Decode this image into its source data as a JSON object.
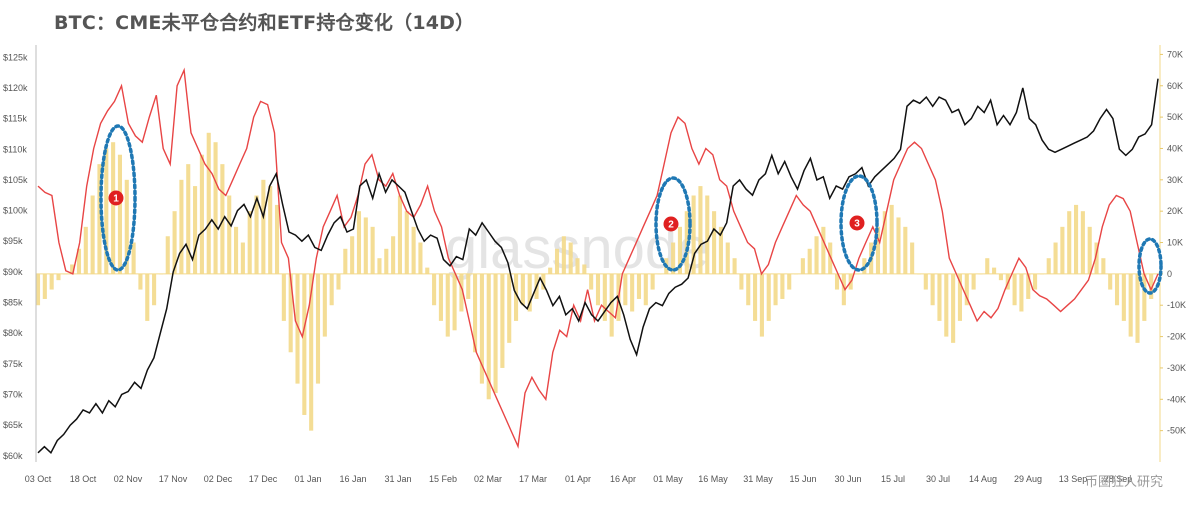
{
  "title": "BTC：CME未平仓合约和ETF持仓变化（14D）",
  "watermark": "glassnode",
  "corner_mark": "币圈狂人研究",
  "chart_data": {
    "type": "line",
    "title": "BTC：CME未平仓合约和ETF持仓变化（14D）",
    "x_ticks": [
      "03 Oct",
      "18 Oct",
      "02 Nov",
      "17 Nov",
      "02 Dec",
      "17 Dec",
      "01 Jan",
      "16 Jan",
      "31 Jan",
      "15 Feb",
      "02 Mar",
      "17 Mar",
      "01 Apr",
      "16 Apr",
      "01 May",
      "16 May",
      "31 May",
      "15 Jun",
      "30 Jun",
      "15 Jul",
      "30 Jul",
      "14 Aug",
      "29 Aug",
      "13 Sep",
      "28 Sep"
    ],
    "y_left": {
      "ticks": [
        "$60k",
        "$65k",
        "$70k",
        "$75k",
        "$80k",
        "$85k",
        "$90k",
        "$95k",
        "$100k",
        "$105k",
        "$110k",
        "$115k",
        "$120k",
        "$125k"
      ],
      "range": [
        59000,
        127000
      ]
    },
    "y_right": {
      "ticks": [
        "-50K",
        "-40K",
        "-30K",
        "-20K",
        "-10K",
        "0",
        "10K",
        "20K",
        "30K",
        "40K",
        "50K",
        "60K",
        "70K"
      ],
      "range": [
        -60000,
        73000
      ]
    },
    "colors": {
      "btc": "#111111",
      "cme": "#e84545",
      "etf": "#f3d98a",
      "marker": "#e02020",
      "ellipse": "#1f78b4"
    },
    "series": [
      {
        "key": "btc",
        "axis": "left",
        "values": [
          60500,
          61500,
          60500,
          62500,
          63500,
          65000,
          66000,
          67500,
          67000,
          68500,
          67000,
          69000,
          68000,
          70000,
          70500,
          72000,
          71000,
          74000,
          76000,
          80000,
          84000,
          90000,
          93000,
          94500,
          92000,
          96000,
          97000,
          98500,
          97000,
          99000,
          97500,
          100000,
          101000,
          99000,
          102000,
          99000,
          104000,
          106000,
          101000,
          96500,
          96000,
          95000,
          96000,
          94000,
          93500,
          96000,
          98000,
          99000,
          96500,
          97000,
          104000,
          105000,
          102000,
          106000,
          103000,
          105000,
          104000,
          103000,
          100000,
          97000,
          95000,
          96000,
          95500,
          92000,
          91000,
          92500,
          92000,
          97000,
          96000,
          98000,
          96500,
          95000,
          94000,
          91500,
          87000,
          85000,
          84000,
          86500,
          89000,
          87000,
          84500,
          86000,
          83000,
          84000,
          82000,
          85000,
          83000,
          82000,
          83500,
          85000,
          86000,
          83000,
          79000,
          76500,
          81000,
          84000,
          85000,
          84500,
          86500,
          87500,
          88000,
          89000,
          93000,
          94500,
          95000,
          97000,
          96000,
          98000,
          104000,
          105000,
          103500,
          102500,
          105000,
          106000,
          109000,
          106000,
          108000,
          105500,
          103500,
          106500,
          108500,
          105000,
          105500,
          102000,
          104000,
          103500,
          105500,
          106000,
          107000,
          104000,
          105500,
          106500,
          107500,
          108500,
          110000,
          117000,
          118000,
          117500,
          118500,
          117000,
          118500,
          118000,
          116000,
          116500,
          114000,
          115000,
          117000,
          116000,
          118000,
          114000,
          115500,
          114000,
          116000,
          120000,
          115000,
          114000,
          111500,
          110000,
          109500,
          110000,
          110500,
          111000,
          111500,
          112000,
          113000,
          115000,
          116500,
          115000,
          110000,
          109000,
          110000,
          112000,
          112500,
          114000,
          121500
        ]
      },
      {
        "key": "cme",
        "axis": "right",
        "values": [
          28000,
          26000,
          25000,
          10000,
          1000,
          0,
          10000,
          28000,
          40000,
          48000,
          52000,
          55000,
          60000,
          48000,
          44000,
          42000,
          50000,
          57000,
          40000,
          35000,
          60000,
          65000,
          45000,
          40000,
          35000,
          32000,
          27000,
          25000,
          30000,
          35000,
          40000,
          50000,
          55000,
          54000,
          45000,
          10000,
          5000,
          -15000,
          -20000,
          -10000,
          5000,
          15000,
          20000,
          25000,
          15000,
          18000,
          25000,
          35000,
          38000,
          30000,
          28000,
          32000,
          25000,
          20000,
          18000,
          22000,
          28000,
          20000,
          15000,
          5000,
          0,
          -5000,
          -15000,
          -25000,
          -30000,
          -35000,
          -40000,
          -45000,
          -50000,
          -55000,
          -38000,
          -33000,
          -37000,
          -40000,
          -25000,
          -18000,
          -20000,
          -10000,
          -15000,
          -5000,
          -15000,
          -10000,
          -12000,
          -14000,
          0,
          5000,
          10000,
          15000,
          20000,
          25000,
          35000,
          45000,
          50000,
          48000,
          40000,
          35000,
          40000,
          38000,
          30000,
          28000,
          20000,
          15000,
          10000,
          8000,
          0,
          3000,
          10000,
          15000,
          20000,
          25000,
          22000,
          20000,
          15000,
          10000,
          5000,
          0,
          -5000,
          -2000,
          5000,
          10000,
          15000,
          10000,
          20000,
          30000,
          35000,
          40000,
          42000,
          40000,
          35000,
          30000,
          20000,
          5000,
          0,
          -5000,
          -10000,
          -15000,
          -12000,
          -14000,
          -11000,
          -5000,
          0,
          5000,
          2000,
          -5000,
          -7000,
          -8000,
          -10000,
          -12000,
          -10000,
          -8000,
          -5000,
          -2000,
          5000,
          15000,
          22000,
          25000,
          24000,
          20000,
          10000,
          0,
          -5000,
          0
        ]
      },
      {
        "key": "etf",
        "axis": "right",
        "values": [
          -10000,
          -8000,
          -5000,
          -2000,
          0,
          3000,
          8000,
          15000,
          25000,
          35000,
          40000,
          42000,
          38000,
          30000,
          10000,
          -5000,
          -15000,
          -10000,
          0,
          12000,
          20000,
          30000,
          35000,
          28000,
          38000,
          45000,
          42000,
          35000,
          25000,
          15000,
          10000,
          20000,
          25000,
          30000,
          28000,
          22000,
          -15000,
          -25000,
          -35000,
          -45000,
          -50000,
          -35000,
          -20000,
          -10000,
          -5000,
          8000,
          12000,
          20000,
          18000,
          15000,
          5000,
          8000,
          12000,
          25000,
          20000,
          15000,
          10000,
          2000,
          -10000,
          -15000,
          -20000,
          -18000,
          -12000,
          -8000,
          -25000,
          -35000,
          -40000,
          -38000,
          -30000,
          -22000,
          -15000,
          -10000,
          -12000,
          -8000,
          -5000,
          2000,
          8000,
          12000,
          10000,
          5000,
          3000,
          -5000,
          -10000,
          -15000,
          -20000,
          -15000,
          -10000,
          -12000,
          -8000,
          -10000,
          -5000,
          0,
          5000,
          10000,
          15000,
          20000,
          25000,
          28000,
          25000,
          20000,
          15000,
          10000,
          5000,
          -5000,
          -10000,
          -15000,
          -20000,
          -15000,
          -10000,
          -8000,
          -5000,
          0,
          5000,
          8000,
          12000,
          15000,
          10000,
          -5000,
          -10000,
          -5000,
          0,
          5000,
          10000,
          15000,
          20000,
          22000,
          18000,
          15000,
          10000,
          0,
          -5000,
          -10000,
          -15000,
          -20000,
          -22000,
          -15000,
          -10000,
          -5000,
          0,
          5000,
          2000,
          -2000,
          -5000,
          -10000,
          -12000,
          -8000,
          -5000,
          0,
          5000,
          10000,
          15000,
          20000,
          22000,
          20000,
          15000,
          10000,
          5000,
          -5000,
          -10000,
          -15000,
          -20000,
          -22000,
          -15000,
          -8000,
          0
        ]
      }
    ],
    "annotations": [
      "1",
      "2",
      "3",
      ""
    ]
  }
}
